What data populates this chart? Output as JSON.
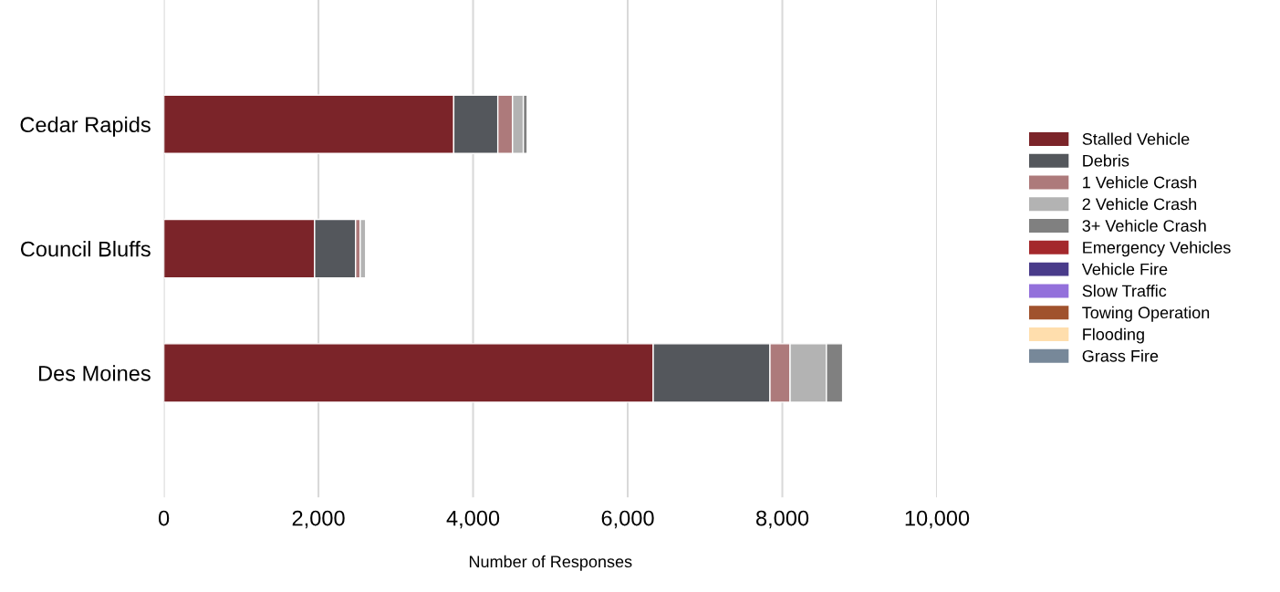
{
  "chart_data": {
    "type": "bar",
    "orientation": "horizontal",
    "stacked": true,
    "categories": [
      "Cedar Rapids",
      "Council Bluffs",
      "Des Moines"
    ],
    "series": [
      {
        "name": "Stalled Vehicle",
        "color": "#7b2429",
        "values": [
          3750,
          1950,
          6330
        ]
      },
      {
        "name": "Debris",
        "color": "#54575c",
        "values": [
          570,
          530,
          1510
        ]
      },
      {
        "name": "1 Vehicle Crash",
        "color": "#ad7a7b",
        "values": [
          190,
          60,
          260
        ]
      },
      {
        "name": "2 Vehicle Crash",
        "color": "#b3b3b3",
        "values": [
          140,
          70,
          470
        ]
      },
      {
        "name": "3+ Vehicle Crash",
        "color": "#808080",
        "values": [
          50,
          0,
          210
        ]
      },
      {
        "name": "Emergency Vehicles",
        "color": "#a4282c",
        "values": [
          0,
          0,
          0
        ]
      },
      {
        "name": "Vehicle Fire",
        "color": "#493b8a",
        "values": [
          0,
          0,
          0
        ]
      },
      {
        "name": "Slow Traffic",
        "color": "#9370db",
        "values": [
          0,
          0,
          0
        ]
      },
      {
        "name": "Towing Operation",
        "color": "#a0522d",
        "values": [
          0,
          0,
          0
        ]
      },
      {
        "name": "Flooding",
        "color": "#ffdead",
        "values": [
          0,
          0,
          0
        ]
      },
      {
        "name": "Grass Fire",
        "color": "#778899",
        "values": [
          0,
          0,
          0
        ]
      }
    ],
    "xlabel": "Number of Responses",
    "xlim": [
      0,
      10000
    ],
    "xticks": [
      0,
      {
        "value": 2000,
        "label": "2,000"
      },
      {
        "value": 4000,
        "label": "4,000"
      },
      {
        "value": 6000,
        "label": "6,000"
      },
      {
        "value": 8000,
        "label": "8,000"
      },
      {
        "value": 10000,
        "label": "10,000"
      }
    ],
    "grid": "x",
    "legend": "right"
  }
}
